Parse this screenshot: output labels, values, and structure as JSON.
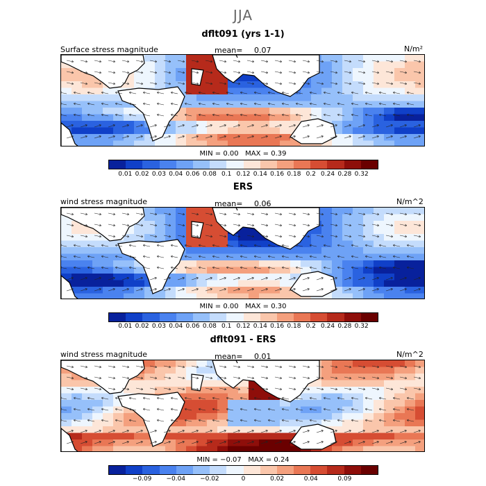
{
  "season": "JJA",
  "panels": [
    {
      "title": "dflt091 (yrs 1-1)",
      "left_label": "Surface stress magnitude",
      "mean_label": "mean=",
      "mean_value": "0.07",
      "units": "N/m²",
      "min_label": "MIN =",
      "min_value": "0.00",
      "max_label": "MAX =",
      "max_value": "0.39",
      "colorbar_ticks": [
        "0.01",
        "0.02",
        "0.03",
        "0.04",
        "0.06",
        "0.08",
        "0.1",
        "0.12",
        "0.14",
        "0.16",
        "0.18",
        "0.2",
        "0.24",
        "0.28",
        "0.32"
      ]
    },
    {
      "title": "ERS",
      "left_label": "wind stress magnitude",
      "mean_label": "mean=",
      "mean_value": "0.06",
      "units": "N/m^2",
      "min_label": "MIN =",
      "min_value": "0.00",
      "max_label": "MAX =",
      "max_value": "0.30",
      "colorbar_ticks": [
        "0.01",
        "0.02",
        "0.03",
        "0.04",
        "0.06",
        "0.08",
        "0.1",
        "0.12",
        "0.14",
        "0.16",
        "0.18",
        "0.2",
        "0.24",
        "0.28",
        "0.32"
      ]
    },
    {
      "title": "dflt091 - ERS",
      "left_label": "wind stress magnitude",
      "mean_label": "mean=",
      "mean_value": "0.01",
      "units": "N/m^2",
      "min_label": "MIN =",
      "min_value": "−0.07",
      "max_label": "MAX =",
      "max_value": "0.24",
      "colorbar_ticks": [
        "−0.09",
        "−0.04",
        "−0.02",
        "0",
        "0.02",
        "0.04",
        "0.09"
      ]
    }
  ],
  "colors": {
    "scale": [
      "#08219c",
      "#1040c8",
      "#2a62e0",
      "#4a82ef",
      "#6ea2f6",
      "#96c0fa",
      "#c4dcfc",
      "#eef6fe",
      "#fde6d8",
      "#fac6ab",
      "#f4a07e",
      "#e97755",
      "#d64d33",
      "#b62a1b",
      "#8e0e0a",
      "#6a0000"
    ],
    "land": "#ffffff"
  }
}
